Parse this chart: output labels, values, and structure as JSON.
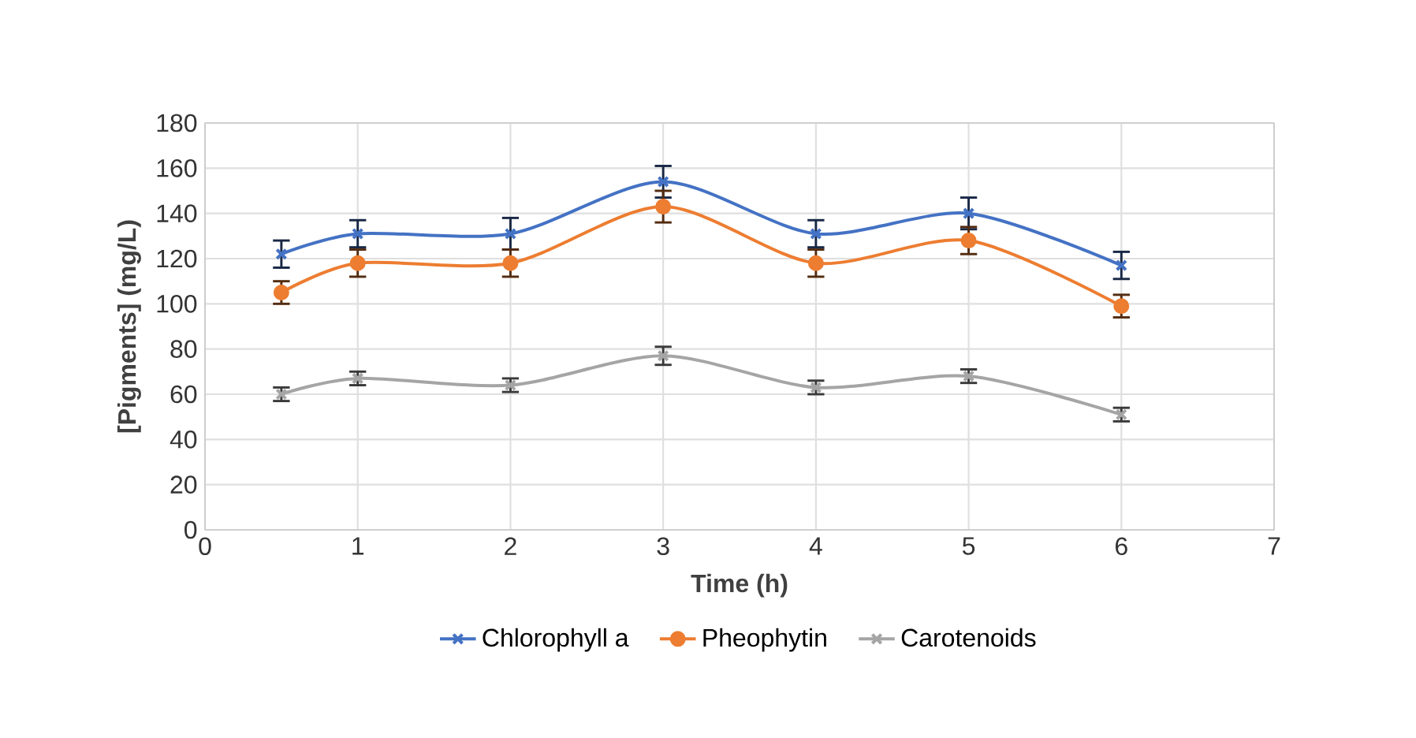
{
  "chart_data": {
    "type": "line",
    "xlabel": "Time (h)",
    "ylabel": "[Pigments] (mg/L)",
    "x": [
      0.5,
      1,
      2,
      3,
      4,
      5,
      6
    ],
    "xlim": [
      0,
      7
    ],
    "xticks": [
      0,
      1,
      2,
      3,
      4,
      5,
      6,
      7
    ],
    "ylim": [
      0,
      180
    ],
    "yticks": [
      0,
      20,
      40,
      60,
      80,
      100,
      120,
      140,
      160,
      180
    ],
    "grid": true,
    "legend": "bottom",
    "series": [
      {
        "name": "Chlorophyll a",
        "color": "#4472c4",
        "marker": "cross",
        "values": [
          122,
          131,
          131,
          154,
          131,
          140,
          117
        ],
        "errors": [
          6,
          6,
          7,
          7,
          6,
          7,
          6
        ]
      },
      {
        "name": "Pheophytin",
        "color": "#ed7d31",
        "marker": "circle",
        "values": [
          105,
          118,
          118,
          143,
          118,
          128,
          99
        ],
        "errors": [
          5,
          6,
          6,
          7,
          6,
          6,
          5
        ]
      },
      {
        "name": "Carotenoids",
        "color": "#a5a5a5",
        "marker": "cross",
        "values": [
          60,
          67,
          64,
          77,
          63,
          68,
          51
        ],
        "errors": [
          3,
          3,
          3,
          4,
          3,
          3,
          3
        ]
      }
    ]
  }
}
